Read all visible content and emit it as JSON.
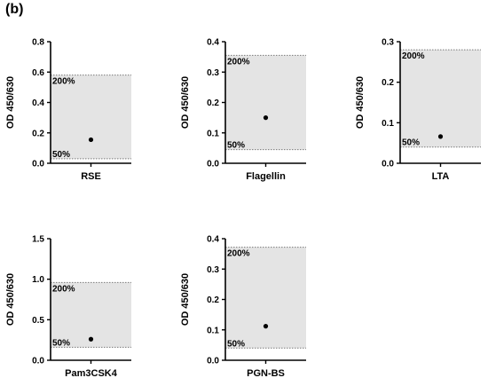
{
  "panel_label": "(b)",
  "chart_data": [
    {
      "type": "scatter",
      "xlabel": "RSE",
      "ylabel": "OD 450/630",
      "ylim": [
        0,
        0.8
      ],
      "yticks": [
        "0.0",
        "0.2",
        "0.4",
        "0.6",
        "0.8"
      ],
      "band": {
        "low": 0.03,
        "high": 0.58,
        "low_label": "50%",
        "high_label": "200%"
      },
      "point": {
        "y": 0.155
      }
    },
    {
      "type": "scatter",
      "xlabel": "Flagellin",
      "ylabel": "OD 450/630",
      "ylim": [
        0,
        0.4
      ],
      "yticks": [
        "0.0",
        "0.1",
        "0.2",
        "0.3",
        "0.4"
      ],
      "band": {
        "low": 0.045,
        "high": 0.355,
        "low_label": "50%",
        "high_label": "200%"
      },
      "point": {
        "y": 0.15
      }
    },
    {
      "type": "scatter",
      "xlabel": "LTA",
      "ylabel": "OD 450/630",
      "ylim": [
        0,
        0.3
      ],
      "yticks": [
        "0.0",
        "0.1",
        "0.2",
        "0.3"
      ],
      "band": {
        "low": 0.04,
        "high": 0.28,
        "low_label": "50%",
        "high_label": "200%"
      },
      "point": {
        "y": 0.066
      }
    },
    {
      "type": "scatter",
      "xlabel": "Pam3CSK4",
      "ylabel": "OD 450/630",
      "ylim": [
        0,
        1.5
      ],
      "yticks": [
        "0.0",
        "0.5",
        "1.0",
        "1.5"
      ],
      "band": {
        "low": 0.16,
        "high": 0.96,
        "low_label": "50%",
        "high_label": "200%"
      },
      "point": {
        "y": 0.26
      }
    },
    {
      "type": "scatter",
      "xlabel": "PGN-BS",
      "ylabel": "OD 450/630",
      "ylim": [
        0,
        0.4
      ],
      "yticks": [
        "0.0",
        "0.1",
        "0.2",
        "0.3",
        "0.4"
      ],
      "band": {
        "low": 0.04,
        "high": 0.372,
        "low_label": "50%",
        "high_label": "200%"
      },
      "point": {
        "y": 0.112
      }
    }
  ],
  "colors": {
    "band": "#e4e4e4",
    "band_line": "#7a7a7a",
    "axis": "#000000",
    "point": "#000000"
  }
}
